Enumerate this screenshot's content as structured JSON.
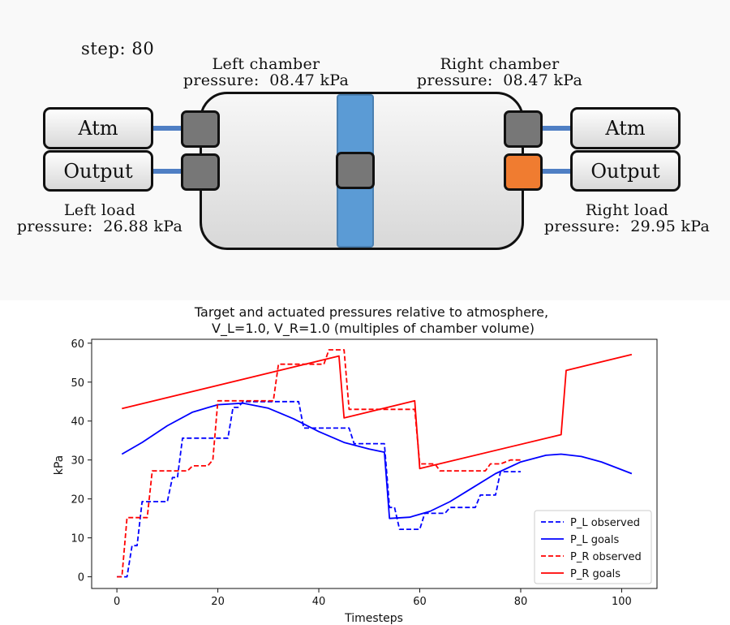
{
  "sim": {
    "step_label": "step:  80",
    "left_chamber": "Left chamber\npressure:  08.47 kPa",
    "right_chamber": "Right chamber\npressure:  08.47 kPa",
    "left_load": "Left load\npressure:  26.88 kPa",
    "right_load": "Right load\npressure:  29.95 kPa",
    "left_atm_label": "Atm",
    "left_output_label": "Output",
    "right_atm_label": "Atm",
    "right_output_label": "Output",
    "port_color": "#777777",
    "active_port_color": "#f07c30",
    "piston_color": "#5b9bd5",
    "pipe_color": "#4f7fc4"
  },
  "chart_data": {
    "type": "line",
    "title": "Target and actuated pressures relative to atmosphere,",
    "subtitle": "V_L=1.0,     V_R=1.0 (multiples of chamber volume)",
    "xlabel": "Timesteps",
    "ylabel": "kPa",
    "xlim": [
      -5,
      107
    ],
    "ylim": [
      -3,
      61
    ],
    "xticks": [
      0,
      20,
      40,
      60,
      80,
      100
    ],
    "yticks": [
      0,
      10,
      20,
      30,
      40,
      50,
      60
    ],
    "grid": false,
    "legend_position": "lower-right",
    "series": [
      {
        "name": "P_L observed",
        "color": "#0000ff",
        "style": "dashed",
        "step": true,
        "points": [
          [
            0,
            0
          ],
          [
            2,
            0
          ],
          [
            3,
            8
          ],
          [
            4,
            8
          ],
          [
            5,
            19.3
          ],
          [
            10,
            19.3
          ],
          [
            11,
            25.5
          ],
          [
            12,
            25.5
          ],
          [
            13,
            35.6
          ],
          [
            22,
            35.6
          ],
          [
            23,
            43.5
          ],
          [
            24,
            43.5
          ],
          [
            25,
            45
          ],
          [
            36,
            45
          ],
          [
            37,
            38.2
          ],
          [
            46,
            38.2
          ],
          [
            47,
            34.2
          ],
          [
            53,
            34.2
          ],
          [
            54,
            17.8
          ],
          [
            55,
            17.8
          ],
          [
            56,
            12.2
          ],
          [
            60,
            12.2
          ],
          [
            61,
            16.3
          ],
          [
            65,
            16.3
          ],
          [
            66,
            17.8
          ],
          [
            71,
            17.8
          ],
          [
            72,
            21
          ],
          [
            75,
            21
          ],
          [
            76,
            27
          ],
          [
            80,
            27
          ]
        ]
      },
      {
        "name": "P_L goals",
        "color": "#0000ff",
        "style": "solid",
        "step": false,
        "points": [
          [
            1,
            31.5
          ],
          [
            5,
            34.5
          ],
          [
            10,
            38.8
          ],
          [
            15,
            42.3
          ],
          [
            20,
            44.2
          ],
          [
            25,
            44.6
          ],
          [
            30,
            43.3
          ],
          [
            35,
            40.6
          ],
          [
            40,
            37.3
          ],
          [
            45,
            34.5
          ],
          [
            50,
            32.8
          ],
          [
            53,
            32
          ],
          [
            54,
            15
          ],
          [
            58,
            15.3
          ],
          [
            62,
            16.8
          ],
          [
            66,
            19.3
          ],
          [
            70,
            22.5
          ],
          [
            75,
            26.5
          ],
          [
            80,
            29.5
          ],
          [
            85,
            31.2
          ],
          [
            88,
            31.5
          ],
          [
            92,
            30.9
          ],
          [
            96,
            29.5
          ],
          [
            102,
            26.5
          ]
        ]
      },
      {
        "name": "P_R observed",
        "color": "#ff0000",
        "style": "dashed",
        "step": true,
        "points": [
          [
            0,
            0
          ],
          [
            1,
            0
          ],
          [
            2,
            15.2
          ],
          [
            6,
            15.2
          ],
          [
            7,
            27.2
          ],
          [
            14,
            27.2
          ],
          [
            15,
            28.5
          ],
          [
            18,
            28.5
          ],
          [
            19,
            30
          ],
          [
            20,
            45.2
          ],
          [
            31,
            45.2
          ],
          [
            32,
            54.6
          ],
          [
            41,
            54.6
          ],
          [
            42,
            58.3
          ],
          [
            45,
            58.3
          ],
          [
            46,
            43
          ],
          [
            59,
            43
          ],
          [
            60,
            29
          ],
          [
            63,
            29
          ],
          [
            64,
            27.2
          ],
          [
            73,
            27.2
          ],
          [
            74,
            29
          ],
          [
            76,
            29
          ],
          [
            77,
            29.5
          ],
          [
            78,
            30
          ],
          [
            80,
            30
          ]
        ]
      },
      {
        "name": "P_R goals",
        "color": "#ff0000",
        "style": "solid",
        "step": false,
        "points": [
          [
            1,
            43.2
          ],
          [
            44,
            56.7
          ],
          [
            45,
            40.8
          ],
          [
            59,
            45.2
          ],
          [
            60,
            27.8
          ],
          [
            88,
            36.5
          ],
          [
            89,
            53
          ],
          [
            102,
            57.1
          ]
        ]
      }
    ]
  }
}
